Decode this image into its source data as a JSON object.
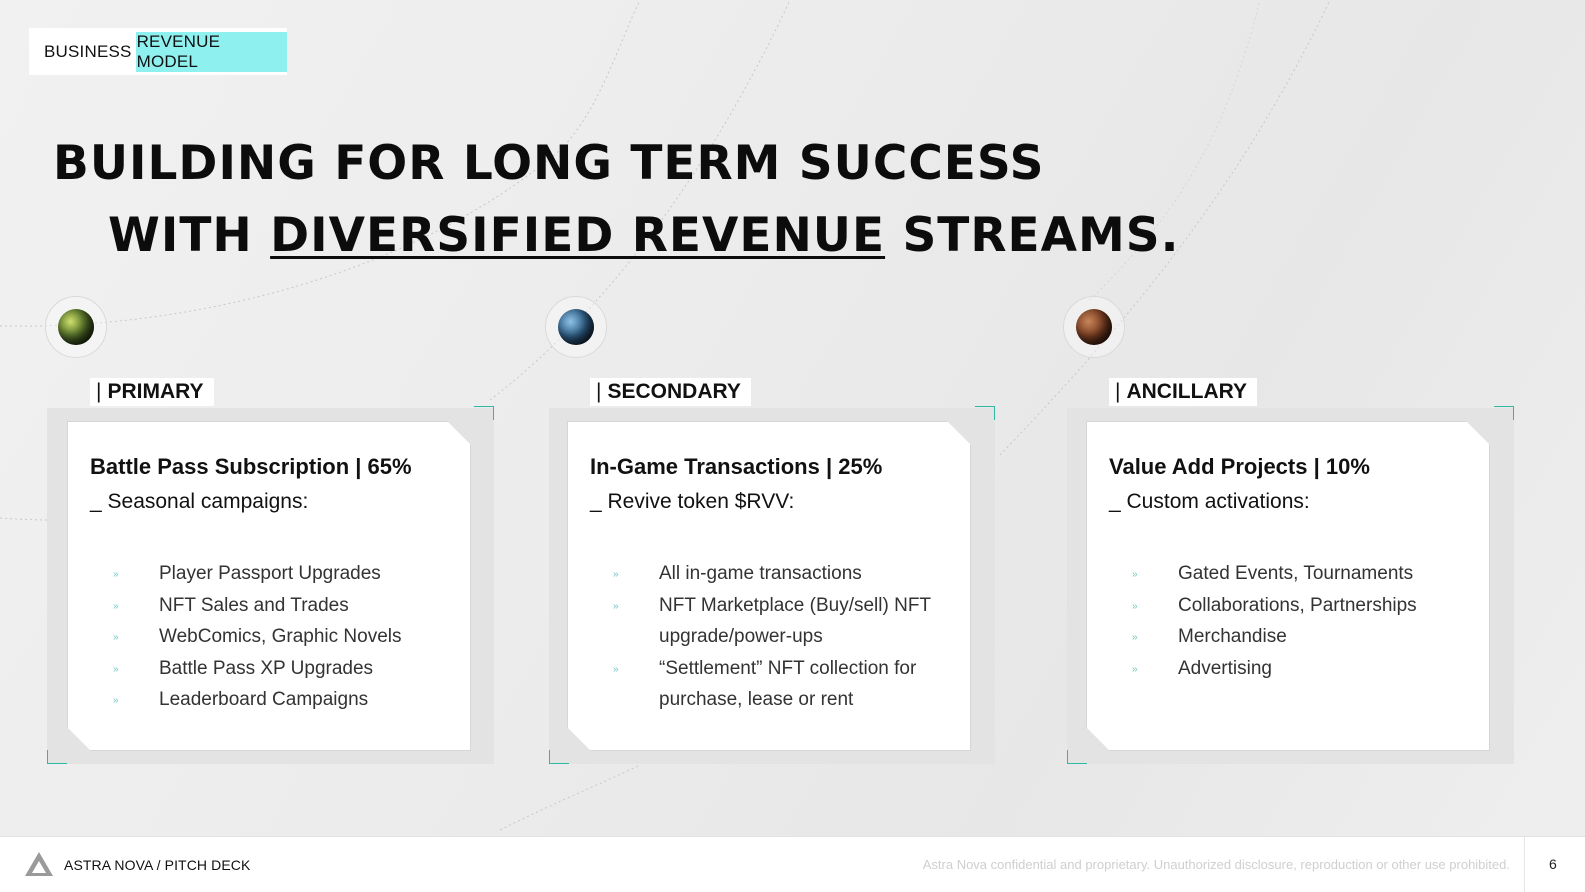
{
  "tag": {
    "prefix": "BUSINESS",
    "highlight": "REVENUE MODEL"
  },
  "headline": {
    "line1": "BUILDING FOR LONG TERM SUCCESS",
    "line2_pre": "WITH",
    "line2_underlined": "DIVERSIFIED REVENUE",
    "line2_post": "STREAMS."
  },
  "columns": [
    {
      "label": "PRIMARY",
      "title": "Battle Pass Subscription  | 65%",
      "subtitle": "_ Seasonal campaigns:",
      "items": [
        "Player Passport Upgrades",
        "NFT Sales and Trades",
        "WebComics, Graphic Novels",
        "Battle Pass XP Upgrades",
        "Leaderboard Campaigns"
      ]
    },
    {
      "label": "SECONDARY",
      "title": "In-Game Transactions | 25%",
      "subtitle": "_ Revive token $RVV:",
      "items": [
        "All in-game transactions",
        "NFT Marketplace (Buy/sell) NFT upgrade/power-ups",
        "“Settlement” NFT collection for purchase, lease or rent"
      ]
    },
    {
      "label": "ANCILLARY",
      "title": "Value Add Projects | 10%",
      "subtitle": "_ Custom activations:",
      "items": [
        "Gated Events, Tournaments",
        "Collaborations, Partnerships",
        "Merchandise",
        "Advertising"
      ]
    }
  ],
  "footer": {
    "brand": "ASTRA NOVA / PITCH DECK",
    "confidential": "Astra Nova confidential and proprietary. Unauthorized disclosure, reproduction or other use prohibited.",
    "page": "6"
  },
  "colors": {
    "accent": "#8ff0f0",
    "corner": "#2fb8a2"
  }
}
